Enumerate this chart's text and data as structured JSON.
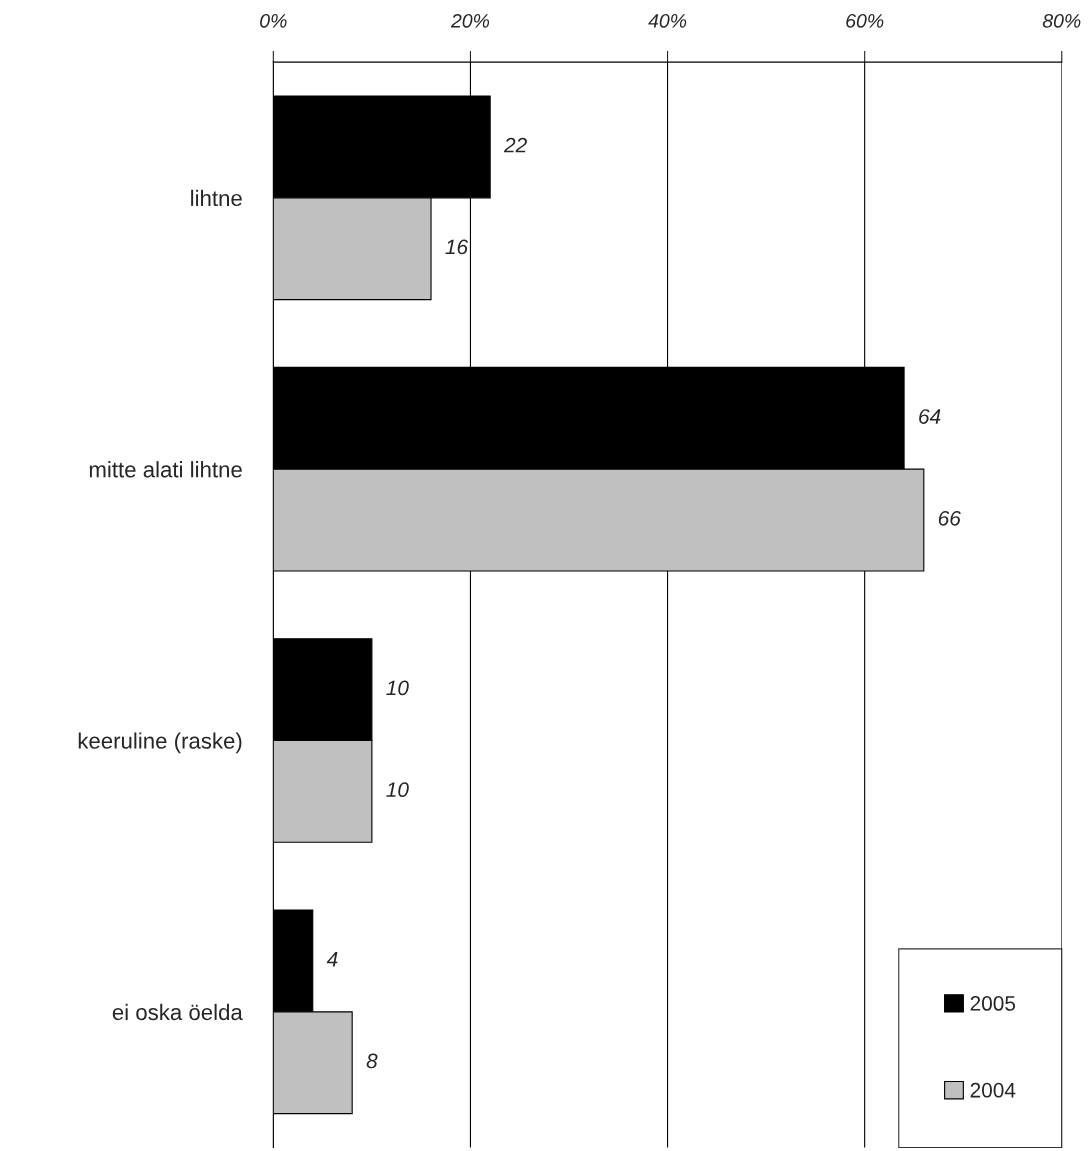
{
  "chart_data": {
    "type": "bar",
    "orientation": "horizontal",
    "categories": [
      "lihtne",
      "mitte alati lihtne",
      "keeruline (raske)",
      "ei oska öelda"
    ],
    "series": [
      {
        "name": "2005",
        "color": "#000000",
        "values": [
          22,
          64,
          10,
          4
        ]
      },
      {
        "name": "2004",
        "color": "#c0c0c0",
        "values": [
          16,
          66,
          10,
          8
        ]
      }
    ],
    "xlim": [
      0,
      80
    ],
    "xticks": [
      {
        "value": 0,
        "label": "0%"
      },
      {
        "value": 20,
        "label": "20%"
      },
      {
        "value": 40,
        "label": "40%"
      },
      {
        "value": 60,
        "label": "60%"
      },
      {
        "value": 80,
        "label": "80%"
      }
    ],
    "grid": "x",
    "legend": "bottom right",
    "data_labels": true
  }
}
